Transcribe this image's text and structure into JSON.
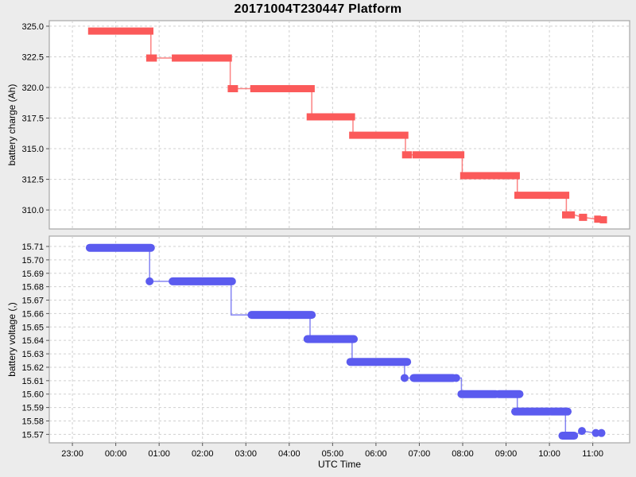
{
  "title": "20171004T230447 Platform",
  "x_axis": {
    "label": "UTC Time",
    "x_unit": "hours_after_23:00_UTC",
    "tick_hours": [
      0,
      1,
      2,
      3,
      4,
      5,
      6,
      7,
      8,
      9,
      10,
      11,
      12
    ],
    "tick_labels": [
      "23:00",
      "00:00",
      "01:00",
      "02:00",
      "03:00",
      "04:00",
      "05:00",
      "06:00",
      "07:00",
      "08:00",
      "09:00",
      "10:00",
      "11:00"
    ],
    "domain_hours_from_2300": [
      -0.533,
      12.85
    ]
  },
  "colors": {
    "figure_bg": "#ececec",
    "plot_bg": "#ffffff",
    "grid": "#d0d0d0",
    "plot_border": "#a6a6a6",
    "charge_series": "#fb5a5a",
    "voltage_series": "#5b5bef",
    "text": "#000000"
  },
  "chart_data": [
    {
      "type": "line",
      "name": "battery-charge",
      "ylabel": "battery charge (Ah)",
      "ylim": [
        308.45,
        325.45
      ],
      "yticks": [
        325.0,
        322.5,
        320.0,
        317.5,
        315.0,
        312.5,
        310.0
      ],
      "ytick_labels": [
        "325.0",
        "322.5",
        "320.0",
        "317.5",
        "315.0",
        "312.5",
        "310.0"
      ],
      "grid": true,
      "legend": false,
      "marker": "square",
      "series": [
        {
          "name": "battery charge",
          "color": "#fb5a5a",
          "line": [
            [
              0.38,
              324.6
            ],
            [
              1.81,
              324.6
            ],
            [
              1.81,
              322.4
            ],
            [
              3.64,
              322.4
            ],
            [
              3.64,
              319.9
            ],
            [
              5.52,
              319.9
            ],
            [
              5.52,
              317.6
            ],
            [
              6.47,
              317.6
            ],
            [
              6.47,
              316.1
            ],
            [
              7.68,
              316.1
            ],
            [
              7.68,
              314.5
            ],
            [
              8.99,
              314.5
            ],
            [
              8.99,
              312.8
            ],
            [
              10.26,
              312.8
            ],
            [
              10.26,
              311.2
            ],
            [
              11.39,
              311.2
            ],
            [
              11.39,
              309.6
            ],
            [
              11.57,
              309.6
            ],
            [
              11.77,
              309.4
            ],
            [
              12.11,
              309.25
            ],
            [
              12.25,
              309.2
            ]
          ],
          "bars": [
            [
              0.38,
              1.85,
              324.6
            ],
            [
              1.72,
              1.93,
              322.4
            ],
            [
              2.31,
              3.66,
              322.4
            ],
            [
              3.6,
              3.8,
              319.9
            ],
            [
              4.12,
              5.57,
              319.9
            ],
            [
              5.42,
              6.5,
              317.6
            ],
            [
              6.4,
              7.73,
              316.1
            ],
            [
              7.62,
              7.81,
              314.5
            ],
            [
              7.86,
              8.78,
              314.5
            ],
            [
              8.81,
              9.02,
              314.5
            ],
            [
              8.96,
              9.79,
              312.8
            ],
            [
              9.82,
              10.3,
              312.8
            ],
            [
              10.21,
              11.02,
              311.2
            ],
            [
              11.05,
              11.44,
              311.2
            ],
            [
              11.31,
              11.57,
              309.6
            ],
            [
              11.7,
              11.85,
              309.4
            ],
            [
              12.05,
              12.17,
              309.25
            ],
            [
              12.18,
              12.31,
              309.2
            ]
          ]
        }
      ]
    },
    {
      "type": "line",
      "name": "battery-voltage",
      "ylabel": "battery voltage (,)",
      "ylim": [
        15.5637,
        15.7177
      ],
      "yticks": [
        15.71,
        15.7,
        15.69,
        15.68,
        15.67,
        15.66,
        15.65,
        15.64,
        15.63,
        15.62,
        15.61,
        15.6,
        15.59,
        15.58,
        15.57
      ],
      "ytick_labels": [
        "15.71",
        "15.70",
        "15.69",
        "15.68",
        "15.67",
        "15.66",
        "15.65",
        "15.64",
        "15.63",
        "15.62",
        "15.61",
        "15.60",
        "15.59",
        "15.58",
        "15.57"
      ],
      "grid": true,
      "legend": false,
      "marker": "circle",
      "series": [
        {
          "name": "battery voltage",
          "color": "#5b5bef",
          "line": [
            [
              0.4,
              15.709
            ],
            [
              1.78,
              15.709
            ],
            [
              1.78,
              15.684
            ],
            [
              3.66,
              15.684
            ],
            [
              3.66,
              15.659
            ],
            [
              5.48,
              15.659
            ],
            [
              5.48,
              15.641
            ],
            [
              6.45,
              15.641
            ],
            [
              6.45,
              15.624
            ],
            [
              7.66,
              15.624
            ],
            [
              7.66,
              15.612
            ],
            [
              8.97,
              15.612
            ],
            [
              8.97,
              15.6
            ],
            [
              10.26,
              15.6
            ],
            [
              10.26,
              15.587
            ],
            [
              11.37,
              15.587
            ],
            [
              11.37,
              15.569
            ],
            [
              11.57,
              15.569
            ],
            [
              11.75,
              15.5725
            ],
            [
              12.07,
              15.571
            ],
            [
              12.2,
              15.571
            ]
          ],
          "bars": [
            [
              0.4,
              1.81,
              15.709
            ],
            [
              1.78,
              1.78,
              15.684
            ],
            [
              2.31,
              3.68,
              15.684
            ],
            [
              4.13,
              5.52,
              15.659
            ],
            [
              5.42,
              6.49,
              15.641
            ],
            [
              6.41,
              7.72,
              15.624
            ],
            [
              7.66,
              7.66,
              15.612
            ],
            [
              7.87,
              8.78,
              15.612
            ],
            [
              8.85,
              8.85,
              15.612
            ],
            [
              8.97,
              9.76,
              15.6
            ],
            [
              9.83,
              10.31,
              15.6
            ],
            [
              10.21,
              10.99,
              15.587
            ],
            [
              11.04,
              11.42,
              15.587
            ],
            [
              11.3,
              11.57,
              15.569
            ],
            [
              11.75,
              11.75,
              15.5725
            ],
            [
              12.07,
              12.07,
              15.571
            ],
            [
              12.2,
              12.2,
              15.571
            ]
          ]
        }
      ]
    }
  ]
}
